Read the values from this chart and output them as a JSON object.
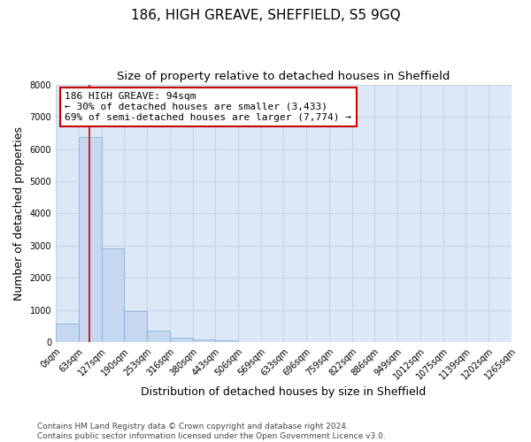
{
  "title": "186, HIGH GREAVE, SHEFFIELD, S5 9GQ",
  "subtitle": "Size of property relative to detached houses in Sheffield",
  "xlabel": "Distribution of detached houses by size in Sheffield",
  "ylabel": "Number of detached properties",
  "bar_values": [
    590,
    6380,
    2920,
    960,
    360,
    160,
    95,
    65,
    0,
    0,
    0,
    0,
    0,
    0,
    0,
    0,
    0,
    0,
    0,
    0
  ],
  "bin_labels": [
    "0sqm",
    "63sqm",
    "127sqm",
    "190sqm",
    "253sqm",
    "316sqm",
    "380sqm",
    "443sqm",
    "506sqm",
    "569sqm",
    "633sqm",
    "696sqm",
    "759sqm",
    "822sqm",
    "886sqm",
    "949sqm",
    "1012sqm",
    "1075sqm",
    "1139sqm",
    "1202sqm",
    "1265sqm"
  ],
  "bar_color": "#c5d8f0",
  "bar_edge_color": "#7aaed4",
  "annotation_text": "186 HIGH GREAVE: 94sqm\n← 30% of detached houses are smaller (3,433)\n69% of semi-detached houses are larger (7,774) →",
  "annotation_box_color": "#ffffff",
  "annotation_border_color": "#cc0000",
  "vline_color": "#cc0000",
  "ylim": [
    0,
    8000
  ],
  "yticks": [
    0,
    1000,
    2000,
    3000,
    4000,
    5000,
    6000,
    7000,
    8000
  ],
  "grid_color": "#c8d4e8",
  "background_color": "#dce8f5",
  "footnote": "Contains HM Land Registry data © Crown copyright and database right 2024.\nContains public sector information licensed under the Open Government Licence v3.0.",
  "title_fontsize": 11,
  "subtitle_fontsize": 9.5,
  "axis_label_fontsize": 9,
  "tick_fontsize": 7,
  "annotation_fontsize": 8,
  "footnote_fontsize": 6.5,
  "vline_x_bin": 1.484
}
